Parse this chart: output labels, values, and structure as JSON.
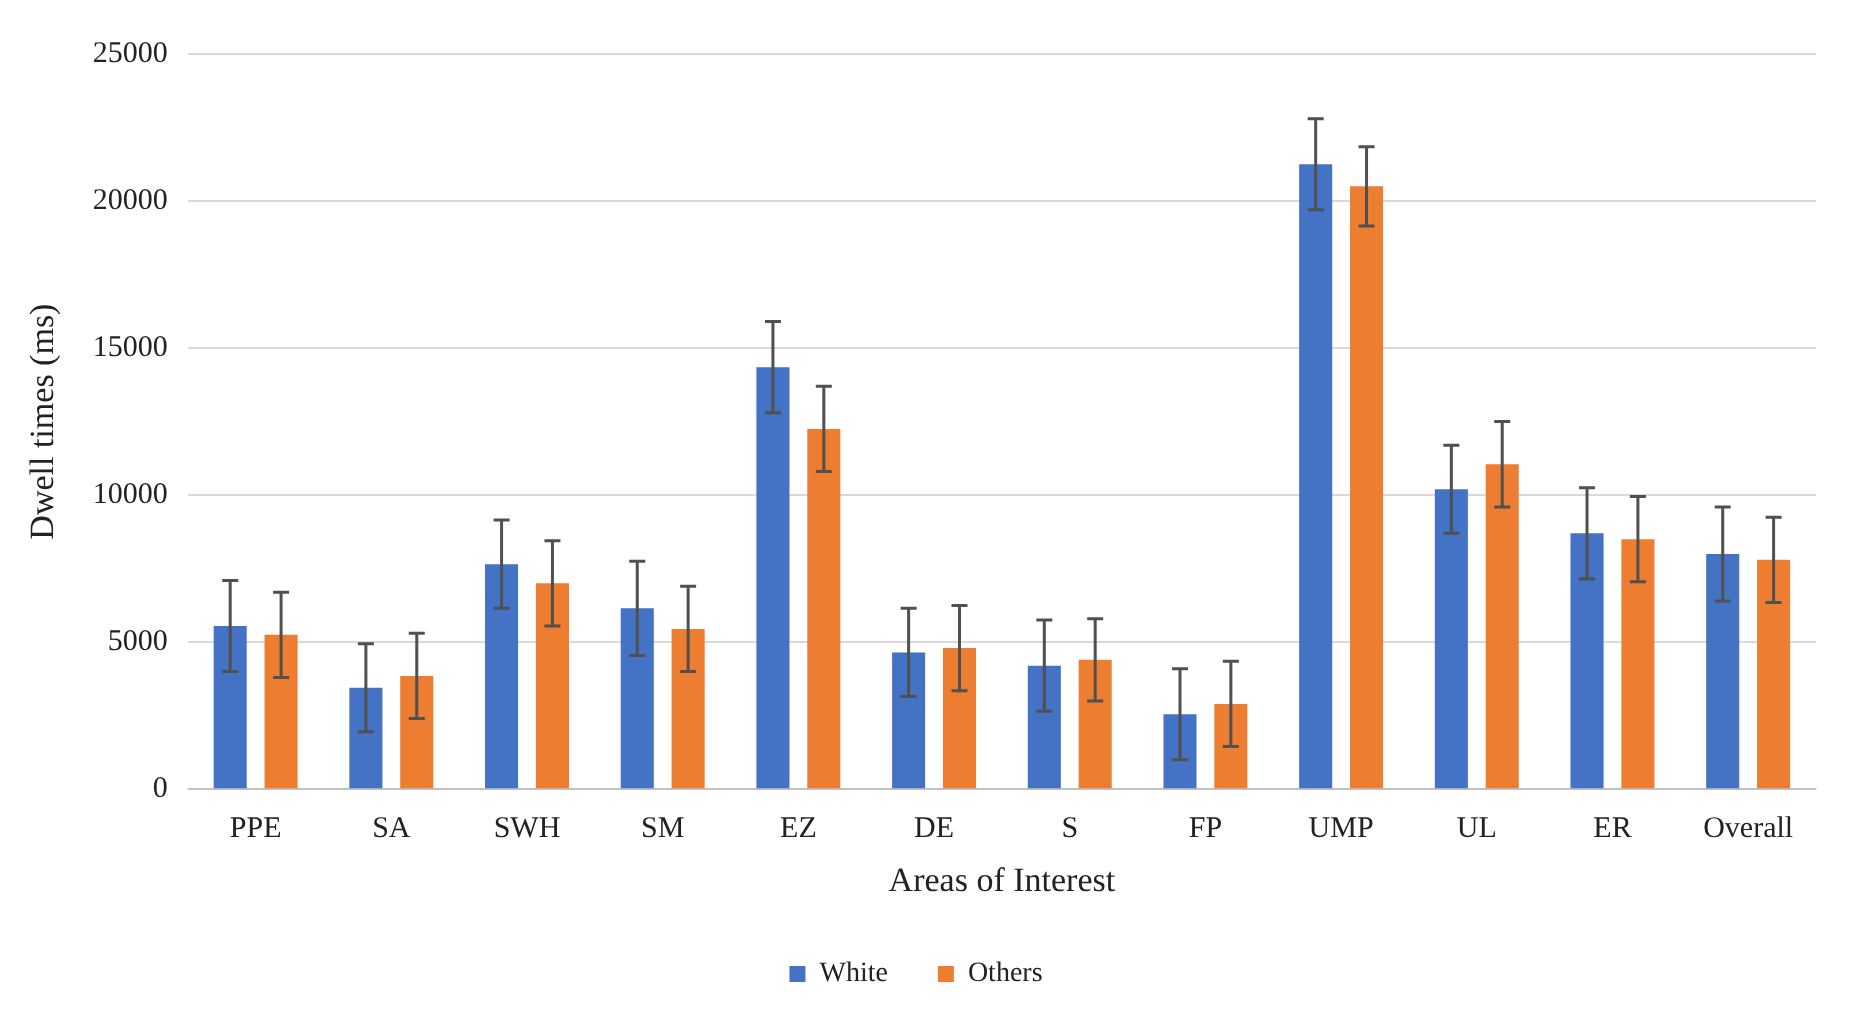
{
  "chart_data": {
    "type": "bar",
    "xlabel": "Areas of Interest",
    "ylabel": "Dwell times (ms)",
    "categories": [
      "PPE",
      "SA",
      "SWH",
      "SM",
      "EZ",
      "DE",
      "S",
      "FP",
      "UMP",
      "UL",
      "ER",
      "Overall"
    ],
    "series": [
      {
        "name": "White",
        "color": "#4472c4",
        "values": [
          5550,
          3450,
          7650,
          6150,
          14350,
          4650,
          4200,
          2550,
          21250,
          10200,
          8700,
          8000
        ],
        "errors": [
          1550,
          1500,
          1500,
          1600,
          1550,
          1500,
          1550,
          1550,
          1550,
          1500,
          1550,
          1600
        ]
      },
      {
        "name": "Others",
        "color": "#ed7d31",
        "values": [
          5250,
          3850,
          7000,
          5450,
          12250,
          4800,
          4400,
          2900,
          20500,
          11050,
          8500,
          7800
        ],
        "errors": [
          1450,
          1450,
          1450,
          1450,
          1450,
          1450,
          1400,
          1450,
          1350,
          1450,
          1450,
          1450
        ]
      }
    ],
    "ylim": [
      0,
      25000
    ],
    "yticks": [
      0,
      5000,
      10000,
      15000,
      20000,
      25000
    ],
    "grid": "y",
    "legend": "bottom"
  }
}
